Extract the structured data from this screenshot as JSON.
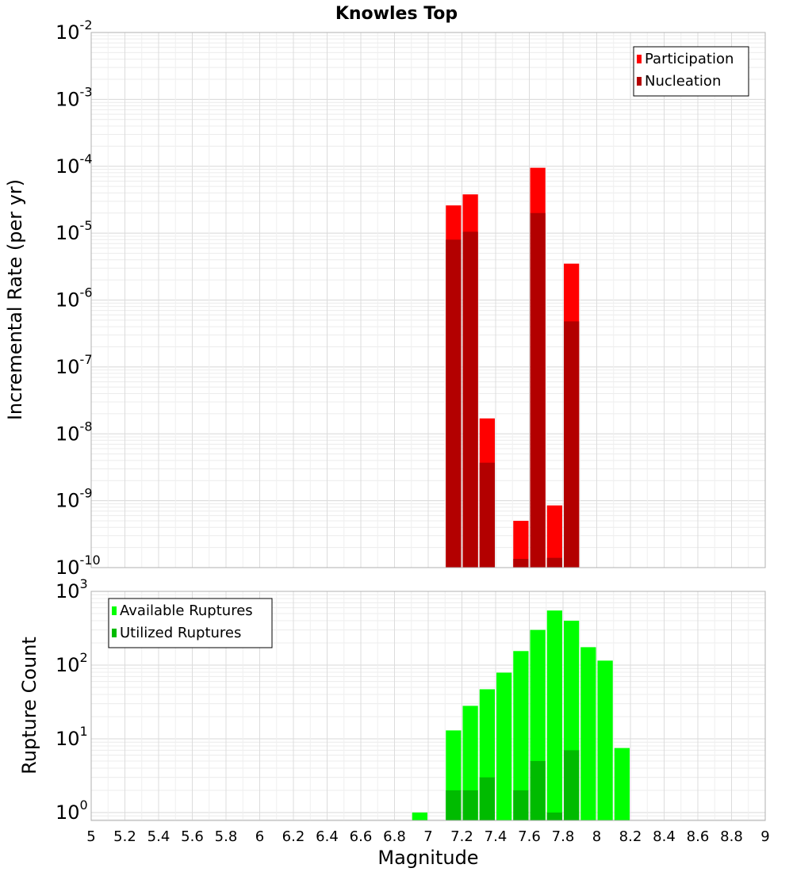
{
  "chart_data": [
    {
      "type": "bar",
      "scale": "log",
      "title": "Knowles Top",
      "xlabel": "Magnitude",
      "ylabel": "Incremental Rate (per yr)",
      "xlim": [
        5,
        9
      ],
      "ylim": [
        1e-10,
        0.01
      ],
      "bin_width": 0.1,
      "x_ticks": [
        "5",
        "5.2",
        "5.4",
        "5.6",
        "5.8",
        "6",
        "6.2",
        "6.4",
        "6.6",
        "6.8",
        "7",
        "7.2",
        "7.4",
        "7.6",
        "7.8",
        "8",
        "8.2",
        "8.4",
        "8.6",
        "8.8",
        "9"
      ],
      "y_ticks": [
        {
          "base": "10",
          "exp": "-10",
          "value": 1e-10
        },
        {
          "base": "10",
          "exp": "-9",
          "value": 1e-09
        },
        {
          "base": "10",
          "exp": "-8",
          "value": 1e-08
        },
        {
          "base": "10",
          "exp": "-7",
          "value": 1e-07
        },
        {
          "base": "10",
          "exp": "-6",
          "value": 1e-06
        },
        {
          "base": "10",
          "exp": "-5",
          "value": 1e-05
        },
        {
          "base": "10",
          "exp": "-4",
          "value": 0.0001
        },
        {
          "base": "10",
          "exp": "-3",
          "value": 0.001
        },
        {
          "base": "10",
          "exp": "-2",
          "value": 0.01
        }
      ],
      "legend_position": "top-right",
      "series": [
        {
          "name": "Participation",
          "color": "#ff0000",
          "x": [
            7.15,
            7.25,
            7.35,
            7.55,
            7.65,
            7.75,
            7.85
          ],
          "values": [
            2.6e-05,
            3.8e-05,
            1.7e-08,
            5e-10,
            9.5e-05,
            8.5e-10,
            3.5e-06
          ]
        },
        {
          "name": "Nucleation",
          "color": "#b30000",
          "x": [
            7.15,
            7.25,
            7.35,
            7.55,
            7.65,
            7.75,
            7.85
          ],
          "values": [
            8e-06,
            1.05e-05,
            3.7e-09,
            1.35e-10,
            2e-05,
            1.4e-10,
            4.8e-07
          ]
        }
      ]
    },
    {
      "type": "bar",
      "scale": "log",
      "title": "",
      "xlabel": "Magnitude",
      "ylabel": "Rupture Count",
      "xlim": [
        5,
        9
      ],
      "ylim": [
        0.78,
        1000
      ],
      "bin_width": 0.1,
      "y_ticks": [
        {
          "base": "10",
          "exp": "0",
          "value": 1
        },
        {
          "base": "10",
          "exp": "1",
          "value": 10
        },
        {
          "base": "10",
          "exp": "2",
          "value": 100
        },
        {
          "base": "10",
          "exp": "3",
          "value": 1000
        }
      ],
      "legend_position": "top-left",
      "series": [
        {
          "name": "Available Ruptures",
          "color": "#00ff00",
          "x": [
            6.95,
            7.15,
            7.25,
            7.35,
            7.45,
            7.55,
            7.65,
            7.75,
            7.85,
            7.95,
            8.05,
            8.15
          ],
          "values": [
            1,
            13,
            28,
            47,
            79,
            155,
            300,
            550,
            400,
            175,
            115,
            7.5
          ]
        },
        {
          "name": "Utilized Ruptures",
          "color": "#00bb00",
          "x": [
            7.15,
            7.25,
            7.35,
            7.55,
            7.65,
            7.75,
            7.85
          ],
          "values": [
            2,
            2,
            3,
            2,
            5,
            1,
            7
          ]
        }
      ]
    }
  ]
}
